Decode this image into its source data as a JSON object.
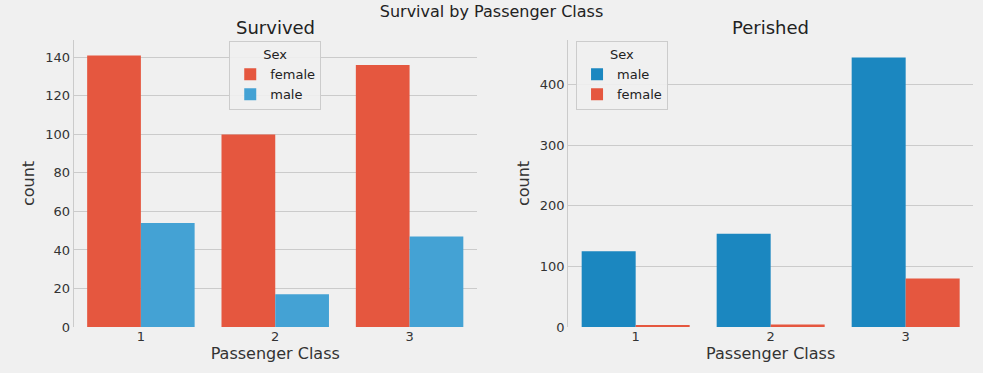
{
  "title": "Survival by Passenger Class",
  "chart_data": [
    {
      "type": "bar",
      "title": "Survived",
      "x_label": "Passenger Class",
      "y_label": "count",
      "categories": [
        "1",
        "2",
        "3"
      ],
      "series": [
        {
          "name": "female",
          "color": "#e5573f",
          "values": [
            141,
            100,
            136
          ]
        },
        {
          "name": "male",
          "color": "#44a2d4",
          "values": [
            54,
            17,
            47
          ]
        }
      ],
      "ylim": [
        0,
        149
      ],
      "yticks": [
        0,
        20,
        40,
        60,
        80,
        100,
        120,
        140
      ],
      "grid": true,
      "legend": "upper center",
      "legend_title": "Sex"
    },
    {
      "type": "bar",
      "title": "Perished",
      "x_label": "Passenger Class",
      "y_label": "count",
      "categories": [
        "1",
        "2",
        "3"
      ],
      "series": [
        {
          "name": "male",
          "color": "#1b87c0",
          "values": [
            125,
            154,
            445
          ]
        },
        {
          "name": "female",
          "color": "#e5573f",
          "values": [
            3,
            4,
            80
          ]
        }
      ],
      "ylim": [
        0,
        474
      ],
      "yticks": [
        0,
        100,
        200,
        300,
        400
      ],
      "grid": true,
      "legend": "upper left",
      "legend_title": "Sex"
    }
  ]
}
